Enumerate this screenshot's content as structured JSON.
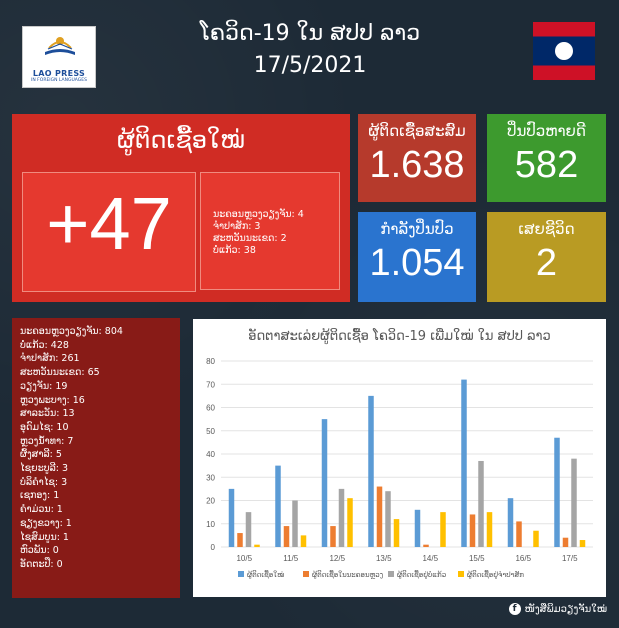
{
  "logo": {
    "name": "LAO PRESS",
    "sub": "IN FOREIGN LANGUAGES"
  },
  "header": {
    "title_line1": "ໂຄວິດ-19 ໃນ ສປປ ລາວ",
    "title_line2": "17/5/2021"
  },
  "flag": {
    "colors": [
      "#ce1126",
      "#002868",
      "#ffffff"
    ]
  },
  "new_cases": {
    "label": "ຜູ້ຕິດເຊື້ອໃໝ່",
    "value": "+47",
    "breakdown": [
      "ນະຄອນຫຼວງວຽງຈັນ: 4",
      "ຈຳປາສັກ: 3",
      "ສະຫວັນນະເຂດ: 2",
      "ບໍ່ແກ້ວ: 38"
    ]
  },
  "stats": {
    "cumulative": {
      "label": "ຜູ້ຕິດເຊື້ອສະສົມ",
      "value": "1.638",
      "color": "#b63a2c"
    },
    "recovered": {
      "label": "ປິ່ນປົວຫາຍດີ",
      "value": "582",
      "color": "#3d9a2e"
    },
    "treating": {
      "label": "ກຳລັງປິ່ນປົວ",
      "value": "1.054",
      "color": "#2a74cf"
    },
    "deaths": {
      "label": "ເສຍຊີວິດ",
      "value": "2",
      "color": "#b99b23"
    }
  },
  "provinces": [
    "ນະຄອນຫຼວງວຽງຈັນ: 804",
    "ບໍ່ແກ້ວ: 428",
    "ຈຳປາສັກ: 261",
    "ສະຫວັນນະເຂດ: 65",
    "ວຽງຈັນ: 19",
    "ຫຼວງພະບາງ: 16",
    "ສາລະວັນ: 13",
    "ອຸດົມໄຊ: 10",
    "ຫຼວງນ້ຳທາ: 7",
    "ຜົ້ງສາລີ: 5",
    "ໄຊຍະບູລີ: 3",
    "ບໍລິຄຳໄຊ: 3",
    "ເຊກອງ: 1",
    "ຄຳມ່ວນ: 1",
    "ຊຽງຂວາງ: 1",
    "ໄຊສົມບູນ: 1",
    "ຫົວພັນ: 0",
    "ອັດຕະປື: 0"
  ],
  "chart_data": {
    "type": "bar",
    "title": "ອັດຕາສະເລ່ຍຜູ້ຕິດເຊື້ອ ໂຄວິດ-19 ເພີ່ມໃໝ່ ໃນ ສປປ ລາວ",
    "categories": [
      "10/5",
      "11/5",
      "12/5",
      "13/5",
      "14/5",
      "15/5",
      "16/5",
      "17/5"
    ],
    "ylim": [
      0,
      80
    ],
    "yticks": [
      0,
      10,
      20,
      30,
      40,
      50,
      60,
      70,
      80
    ],
    "grid": true,
    "legend_position": "bottom",
    "series": [
      {
        "name": "ຜູ້ຕິດເຊື້ອໃໝ່",
        "color": "#5b9bd5",
        "values": [
          25,
          35,
          55,
          65,
          16,
          72,
          21,
          47
        ]
      },
      {
        "name": "ຜູ້ຕິດເຊື້ອໃນນະຄອນຫຼວງ",
        "color": "#ed7d31",
        "values": [
          6,
          9,
          9,
          26,
          1,
          14,
          11,
          4
        ]
      },
      {
        "name": "ຜູ້ຕິດເຊື້ອຢູ່ບໍ່ແກ້ວ",
        "color": "#a5a5a5",
        "values": [
          15,
          20,
          25,
          24,
          0,
          37,
          0,
          38
        ]
      },
      {
        "name": "ຜູ້ຕິດເຊື້ອຢູ່ຈຳປາສັກ",
        "color": "#ffc000",
        "values": [
          1,
          5,
          21,
          12,
          15,
          15,
          7,
          3
        ]
      }
    ]
  },
  "footer": {
    "facebook_text": "ໜັງສືພິມວຽງຈັນໃໝ່",
    "icon": "facebook-icon"
  }
}
